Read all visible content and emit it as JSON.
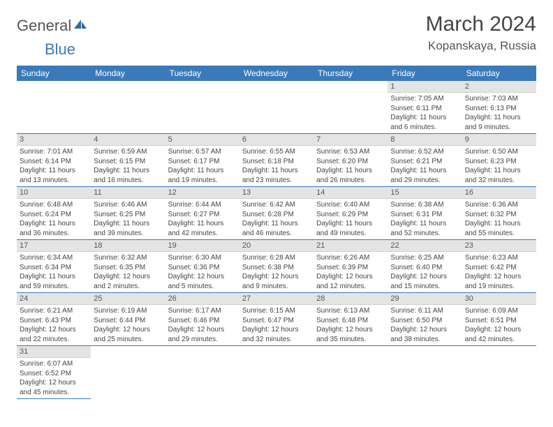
{
  "brand": {
    "part1": "General",
    "part2": "Blue"
  },
  "title": "March 2024",
  "location": "Kopanskaya, Russia",
  "colors": {
    "header_bg": "#3a7ab8",
    "header_text": "#ffffff",
    "daynum_bg": "#e4e4e4",
    "rule": "#3a7ab8",
    "text": "#444444"
  },
  "weekdays": [
    "Sunday",
    "Monday",
    "Tuesday",
    "Wednesday",
    "Thursday",
    "Friday",
    "Saturday"
  ],
  "weeks": [
    [
      null,
      null,
      null,
      null,
      null,
      {
        "n": "1",
        "sr": "Sunrise: 7:05 AM",
        "ss": "Sunset: 6:11 PM",
        "d1": "Daylight: 11 hours",
        "d2": "and 6 minutes."
      },
      {
        "n": "2",
        "sr": "Sunrise: 7:03 AM",
        "ss": "Sunset: 6:13 PM",
        "d1": "Daylight: 11 hours",
        "d2": "and 9 minutes."
      }
    ],
    [
      {
        "n": "3",
        "sr": "Sunrise: 7:01 AM",
        "ss": "Sunset: 6:14 PM",
        "d1": "Daylight: 11 hours",
        "d2": "and 13 minutes."
      },
      {
        "n": "4",
        "sr": "Sunrise: 6:59 AM",
        "ss": "Sunset: 6:15 PM",
        "d1": "Daylight: 11 hours",
        "d2": "and 16 minutes."
      },
      {
        "n": "5",
        "sr": "Sunrise: 6:57 AM",
        "ss": "Sunset: 6:17 PM",
        "d1": "Daylight: 11 hours",
        "d2": "and 19 minutes."
      },
      {
        "n": "6",
        "sr": "Sunrise: 6:55 AM",
        "ss": "Sunset: 6:18 PM",
        "d1": "Daylight: 11 hours",
        "d2": "and 23 minutes."
      },
      {
        "n": "7",
        "sr": "Sunrise: 6:53 AM",
        "ss": "Sunset: 6:20 PM",
        "d1": "Daylight: 11 hours",
        "d2": "and 26 minutes."
      },
      {
        "n": "8",
        "sr": "Sunrise: 6:52 AM",
        "ss": "Sunset: 6:21 PM",
        "d1": "Daylight: 11 hours",
        "d2": "and 29 minutes."
      },
      {
        "n": "9",
        "sr": "Sunrise: 6:50 AM",
        "ss": "Sunset: 6:23 PM",
        "d1": "Daylight: 11 hours",
        "d2": "and 32 minutes."
      }
    ],
    [
      {
        "n": "10",
        "sr": "Sunrise: 6:48 AM",
        "ss": "Sunset: 6:24 PM",
        "d1": "Daylight: 11 hours",
        "d2": "and 36 minutes."
      },
      {
        "n": "11",
        "sr": "Sunrise: 6:46 AM",
        "ss": "Sunset: 6:25 PM",
        "d1": "Daylight: 11 hours",
        "d2": "and 39 minutes."
      },
      {
        "n": "12",
        "sr": "Sunrise: 6:44 AM",
        "ss": "Sunset: 6:27 PM",
        "d1": "Daylight: 11 hours",
        "d2": "and 42 minutes."
      },
      {
        "n": "13",
        "sr": "Sunrise: 6:42 AM",
        "ss": "Sunset: 6:28 PM",
        "d1": "Daylight: 11 hours",
        "d2": "and 46 minutes."
      },
      {
        "n": "14",
        "sr": "Sunrise: 6:40 AM",
        "ss": "Sunset: 6:29 PM",
        "d1": "Daylight: 11 hours",
        "d2": "and 49 minutes."
      },
      {
        "n": "15",
        "sr": "Sunrise: 6:38 AM",
        "ss": "Sunset: 6:31 PM",
        "d1": "Daylight: 11 hours",
        "d2": "and 52 minutes."
      },
      {
        "n": "16",
        "sr": "Sunrise: 6:36 AM",
        "ss": "Sunset: 6:32 PM",
        "d1": "Daylight: 11 hours",
        "d2": "and 55 minutes."
      }
    ],
    [
      {
        "n": "17",
        "sr": "Sunrise: 6:34 AM",
        "ss": "Sunset: 6:34 PM",
        "d1": "Daylight: 11 hours",
        "d2": "and 59 minutes."
      },
      {
        "n": "18",
        "sr": "Sunrise: 6:32 AM",
        "ss": "Sunset: 6:35 PM",
        "d1": "Daylight: 12 hours",
        "d2": "and 2 minutes."
      },
      {
        "n": "19",
        "sr": "Sunrise: 6:30 AM",
        "ss": "Sunset: 6:36 PM",
        "d1": "Daylight: 12 hours",
        "d2": "and 5 minutes."
      },
      {
        "n": "20",
        "sr": "Sunrise: 6:28 AM",
        "ss": "Sunset: 6:38 PM",
        "d1": "Daylight: 12 hours",
        "d2": "and 9 minutes."
      },
      {
        "n": "21",
        "sr": "Sunrise: 6:26 AM",
        "ss": "Sunset: 6:39 PM",
        "d1": "Daylight: 12 hours",
        "d2": "and 12 minutes."
      },
      {
        "n": "22",
        "sr": "Sunrise: 6:25 AM",
        "ss": "Sunset: 6:40 PM",
        "d1": "Daylight: 12 hours",
        "d2": "and 15 minutes."
      },
      {
        "n": "23",
        "sr": "Sunrise: 6:23 AM",
        "ss": "Sunset: 6:42 PM",
        "d1": "Daylight: 12 hours",
        "d2": "and 19 minutes."
      }
    ],
    [
      {
        "n": "24",
        "sr": "Sunrise: 6:21 AM",
        "ss": "Sunset: 6:43 PM",
        "d1": "Daylight: 12 hours",
        "d2": "and 22 minutes."
      },
      {
        "n": "25",
        "sr": "Sunrise: 6:19 AM",
        "ss": "Sunset: 6:44 PM",
        "d1": "Daylight: 12 hours",
        "d2": "and 25 minutes."
      },
      {
        "n": "26",
        "sr": "Sunrise: 6:17 AM",
        "ss": "Sunset: 6:46 PM",
        "d1": "Daylight: 12 hours",
        "d2": "and 29 minutes."
      },
      {
        "n": "27",
        "sr": "Sunrise: 6:15 AM",
        "ss": "Sunset: 6:47 PM",
        "d1": "Daylight: 12 hours",
        "d2": "and 32 minutes."
      },
      {
        "n": "28",
        "sr": "Sunrise: 6:13 AM",
        "ss": "Sunset: 6:48 PM",
        "d1": "Daylight: 12 hours",
        "d2": "and 35 minutes."
      },
      {
        "n": "29",
        "sr": "Sunrise: 6:11 AM",
        "ss": "Sunset: 6:50 PM",
        "d1": "Daylight: 12 hours",
        "d2": "and 38 minutes."
      },
      {
        "n": "30",
        "sr": "Sunrise: 6:09 AM",
        "ss": "Sunset: 6:51 PM",
        "d1": "Daylight: 12 hours",
        "d2": "and 42 minutes."
      }
    ],
    [
      {
        "n": "31",
        "sr": "Sunrise: 6:07 AM",
        "ss": "Sunset: 6:52 PM",
        "d1": "Daylight: 12 hours",
        "d2": "and 45 minutes."
      },
      null,
      null,
      null,
      null,
      null,
      null
    ]
  ]
}
